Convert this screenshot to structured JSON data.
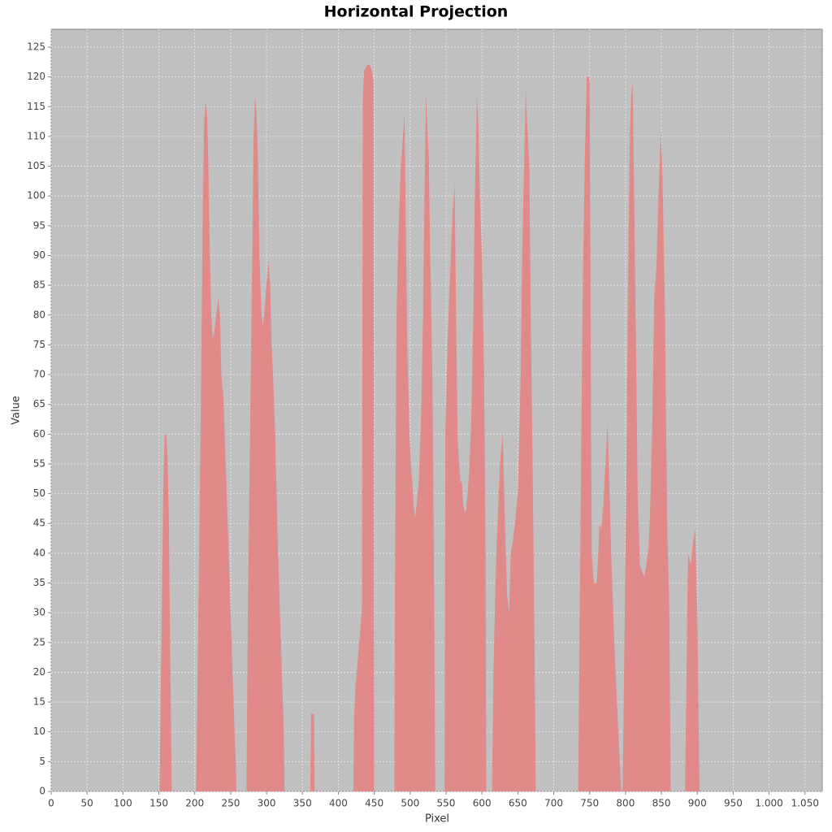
{
  "chart_data": {
    "type": "area",
    "title": "Horizontal Projection",
    "x_label": "Pixel",
    "y_label": "Value",
    "color": "#e08a8a",
    "grid": true,
    "xlim": [
      0,
      1074
    ],
    "ylim": [
      0,
      128
    ],
    "xticks": [
      0,
      50,
      100,
      150,
      200,
      250,
      300,
      350,
      400,
      450,
      500,
      550,
      600,
      650,
      700,
      750,
      800,
      850,
      900,
      950,
      {
        "value": 1000,
        "label": "1.000"
      },
      {
        "value": 1050,
        "label": "1.050"
      }
    ],
    "yticks": [
      0,
      5,
      10,
      15,
      20,
      25,
      30,
      35,
      40,
      45,
      50,
      55,
      60,
      65,
      70,
      75,
      80,
      85,
      90,
      95,
      100,
      105,
      110,
      115,
      120,
      125
    ],
    "x": [
      0,
      151,
      153,
      156,
      158,
      160,
      162,
      164,
      166,
      168,
      202,
      205,
      208,
      211,
      213,
      215,
      217,
      219,
      221,
      223,
      225,
      227,
      230,
      233,
      235,
      237,
      240,
      243,
      246,
      250,
      254,
      257,
      258,
      272,
      274,
      277,
      280,
      282,
      284,
      286,
      288,
      290,
      293,
      295,
      298,
      301,
      303,
      305,
      307,
      309,
      312,
      316,
      320,
      324,
      325,
      361,
      362,
      366,
      367,
      421,
      422,
      424,
      427,
      430,
      433,
      434,
      436,
      440,
      444,
      447,
      449,
      450,
      478,
      479,
      481,
      484,
      487,
      490,
      492,
      494,
      496,
      499,
      502,
      503,
      505,
      507,
      509,
      512,
      515,
      518,
      520,
      522,
      524,
      526,
      528,
      531,
      533,
      535,
      548,
      549,
      552,
      556,
      559,
      562,
      564,
      566,
      568,
      570,
      572,
      574,
      576,
      578,
      580,
      582,
      585,
      588,
      590,
      593,
      595,
      597,
      600,
      603,
      605,
      606,
      614,
      616,
      620,
      625,
      629,
      632,
      635,
      638,
      640,
      643,
      646,
      650,
      654,
      656,
      661,
      663,
      666,
      668,
      672,
      675,
      734,
      737,
      740,
      743,
      746,
      749,
      750,
      752,
      753,
      756,
      760,
      764,
      766,
      769,
      772,
      775,
      780,
      786,
      794,
      796,
      798,
      801,
      803,
      806,
      808,
      810,
      812,
      814,
      817,
      820,
      823,
      826,
      829,
      832,
      834,
      837,
      840,
      843,
      846,
      849,
      851,
      852,
      855,
      858,
      861,
      863,
      883,
      885,
      887,
      889,
      891,
      894,
      897,
      900,
      903,
      1074
    ],
    "values": [
      0,
      0,
      20,
      50,
      60,
      60,
      57,
      45,
      20,
      0,
      0,
      30,
      60,
      95,
      112,
      116,
      114,
      105,
      90,
      80,
      76,
      77,
      80,
      83,
      80,
      70,
      66,
      55,
      45,
      30,
      15,
      5,
      0,
      0,
      30,
      60,
      90,
      110,
      117,
      114,
      106,
      90,
      80,
      78,
      82,
      87,
      89,
      85,
      75,
      70,
      60,
      40,
      25,
      10,
      0,
      0,
      13,
      13,
      0,
      0,
      13,
      18,
      22,
      26,
      31,
      117,
      121,
      122,
      122,
      121,
      119,
      0,
      0,
      40,
      80,
      95,
      105,
      110,
      114,
      95,
      75,
      60,
      53,
      52,
      48,
      46,
      48,
      52,
      62,
      80,
      100,
      117,
      112,
      106,
      90,
      70,
      40,
      0,
      0,
      60,
      75,
      88,
      97,
      102,
      80,
      60,
      55,
      52,
      52,
      48,
      47,
      47,
      50,
      53,
      62,
      80,
      100,
      117,
      112,
      100,
      90,
      70,
      40,
      0,
      0,
      20,
      40,
      55,
      60,
      45,
      33,
      30,
      40,
      42,
      45,
      50,
      70,
      90,
      118,
      112,
      105,
      80,
      40,
      0,
      0,
      40,
      80,
      105,
      120,
      120,
      119,
      60,
      40,
      35,
      35,
      45,
      44,
      48,
      55,
      62,
      40,
      20,
      0,
      0,
      20,
      50,
      80,
      110,
      117,
      119,
      100,
      80,
      50,
      38,
      37,
      36,
      38,
      41,
      46,
      60,
      83,
      88,
      100,
      111,
      105,
      100,
      80,
      45,
      30,
      0,
      0,
      20,
      40,
      39,
      38,
      42,
      44,
      30,
      0,
      0
    ]
  }
}
